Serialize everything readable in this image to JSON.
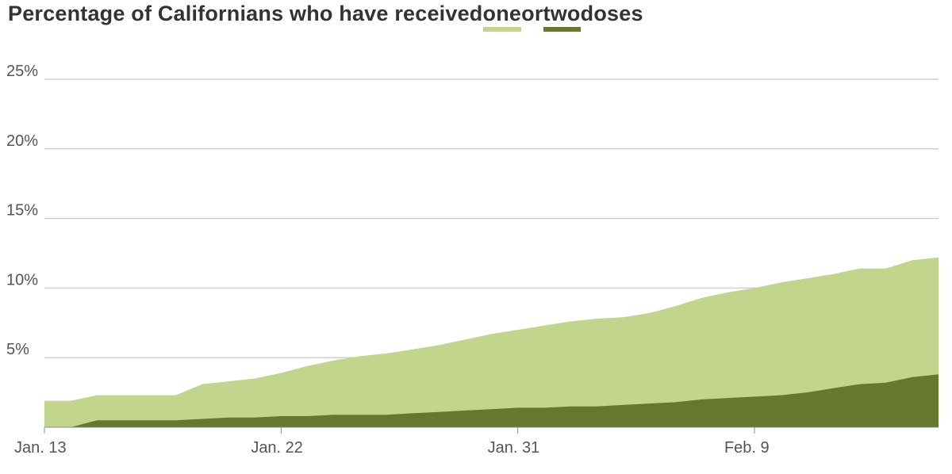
{
  "title": {
    "prefix": "Percentage of Californians who have received ",
    "one": "one",
    "mid": " or ",
    "two": "two",
    "suffix": " doses"
  },
  "colors": {
    "one_dose": "#c3d48d",
    "two_doses": "#66782c",
    "grid": "#d0d0d0",
    "axis": "#888888"
  },
  "chart_data": {
    "type": "area",
    "x": [
      "Jan. 13",
      "Jan. 14",
      "Jan. 15",
      "Jan. 16",
      "Jan. 17",
      "Jan. 18",
      "Jan. 19",
      "Jan. 20",
      "Jan. 21",
      "Jan. 22",
      "Jan. 23",
      "Jan. 24",
      "Jan. 25",
      "Jan. 26",
      "Jan. 27",
      "Jan. 28",
      "Jan. 29",
      "Jan. 30",
      "Jan. 31",
      "Feb. 1",
      "Feb. 2",
      "Feb. 3",
      "Feb. 4",
      "Feb. 5",
      "Feb. 6",
      "Feb. 7",
      "Feb. 8",
      "Feb. 9",
      "Feb. 10",
      "Feb. 11",
      "Feb. 12",
      "Feb. 13",
      "Feb. 14",
      "Feb. 15",
      "Feb. 16"
    ],
    "series": [
      {
        "name": "one",
        "values": [
          1.9,
          1.9,
          2.3,
          2.3,
          2.3,
          2.3,
          3.1,
          3.3,
          3.5,
          3.9,
          4.4,
          4.8,
          5.1,
          5.3,
          5.6,
          5.9,
          6.3,
          6.7,
          7.0,
          7.3,
          7.6,
          7.8,
          7.9,
          8.2,
          8.7,
          9.3,
          9.7,
          10.0,
          10.4,
          10.7,
          11.0,
          11.4,
          11.4,
          12.0,
          12.2
        ]
      },
      {
        "name": "two",
        "values": [
          0.0,
          0.0,
          0.5,
          0.5,
          0.5,
          0.5,
          0.6,
          0.7,
          0.7,
          0.8,
          0.8,
          0.9,
          0.9,
          0.9,
          1.0,
          1.1,
          1.2,
          1.3,
          1.4,
          1.4,
          1.5,
          1.5,
          1.6,
          1.7,
          1.8,
          2.0,
          2.1,
          2.2,
          2.3,
          2.5,
          2.8,
          3.1,
          3.2,
          3.6,
          3.8
        ]
      }
    ],
    "x_ticks": [
      "Jan. 13",
      "Jan. 22",
      "Jan. 31",
      "Feb. 9"
    ],
    "y_ticks": [
      5,
      10,
      15,
      20,
      25
    ],
    "y_tick_labels": [
      "5%",
      "10%",
      "15%",
      "20%",
      "25%"
    ],
    "ylim": [
      0,
      25
    ],
    "grid": true,
    "legend": "inline-title"
  }
}
